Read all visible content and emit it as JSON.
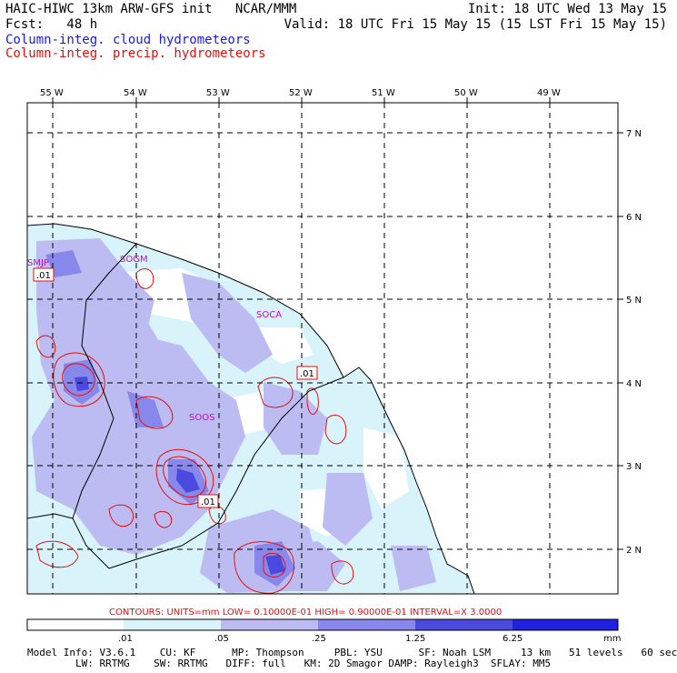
{
  "header": {
    "title": "HAIC-HIWC 13km ARW-GFS init   NCAR/MMM",
    "init": "Init: 18 UTC Wed 13 May 15",
    "fcst": "Fcst:   48 h",
    "valid": "Valid: 18 UTC Fri 15 May 15 (15 LST Fri 15 May 15)",
    "legend_cloud": "Column-integ. cloud hydrometeors",
    "legend_precip": "Column-integ. precip. hydrometeors"
  },
  "colors": {
    "cloud_text": "#1a1adc",
    "precip_text": "#e01010",
    "label": "#d000d0",
    "shade_1": "#d8f4fa",
    "shade_2": "#bcbcf2",
    "shade_3": "#8888ec",
    "shade_4": "#4a4ade",
    "shade_5": "#2020e0"
  },
  "map": {
    "lon_labels": [
      "55 W",
      "54 W",
      "53 W",
      "52 W",
      "51 W",
      "50 W",
      "49 W"
    ],
    "lat_labels": [
      "7 N",
      "6 N",
      "5 N",
      "4 N",
      "3 N",
      "2 N"
    ],
    "station_labels": [
      "SMJP",
      "SOGM",
      "SOCA",
      "SOOS"
    ],
    "contour_labels": [
      ".01",
      ".01",
      ".01"
    ]
  },
  "contours_line": "CONTOURS:  UNITS=mm  LOW= 0.10000E-01  HIGH= 0.90000E-01  INTERVAL=X  3.0000",
  "colorbar": {
    "ticks": [
      ".01",
      ".05",
      ".25",
      "1.25",
      "6.25"
    ],
    "units": "mm"
  },
  "footer": {
    "line1": "Model Info: V3.6.1    CU: KF      MP: Thompson     PBL: YSU      SF: Noah LSM     13 km   51 levels   60 sec",
    "line2": "        LW: RRTMG    SW: RRTMG   DIFF: full   KM: 2D Smagor DAMP: Rayleigh3  SFLAY: MM5"
  }
}
